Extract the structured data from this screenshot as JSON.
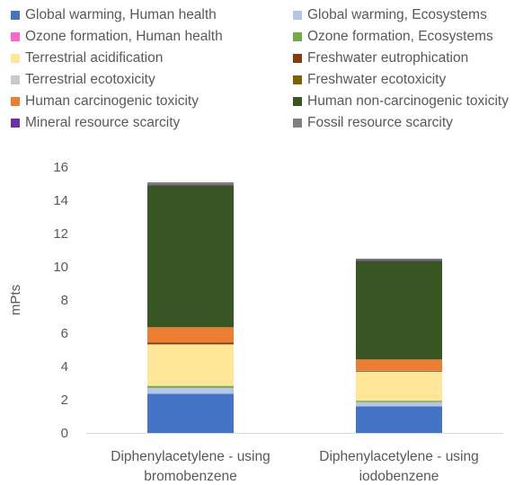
{
  "chart_data": {
    "type": "bar",
    "stacked": true,
    "categories": [
      [
        "Diphenylacetylene - using",
        "bromobenzene"
      ],
      [
        "Diphenylacetylene - using",
        "iodobenzene"
      ]
    ],
    "ylabel": "mPts",
    "ylim": [
      0,
      16
    ],
    "yticks": [
      0,
      2,
      4,
      6,
      8,
      10,
      12,
      14,
      16
    ],
    "grid": false,
    "legend_position": "top",
    "series": [
      {
        "name": "Global warming, Human health",
        "color": "#4472c4",
        "values": [
          2.35,
          1.6
        ]
      },
      {
        "name": "Global warming, Ecosystems",
        "color": "#b4c7e7",
        "values": [
          0.35,
          0.25
        ]
      },
      {
        "name": "Ozone formation, Human health",
        "color": "#ff66cc",
        "values": [
          0.01,
          0.01
        ]
      },
      {
        "name": "Ozone formation, Ecosystems",
        "color": "#70ad47",
        "values": [
          0.12,
          0.08
        ]
      },
      {
        "name": "Terrestrial acidification",
        "color": "#ffe699",
        "values": [
          2.5,
          1.75
        ]
      },
      {
        "name": "Freshwater eutrophication",
        "color": "#843c0c",
        "values": [
          0.1,
          0.05
        ]
      },
      {
        "name": "Terrestrial ecotoxicity",
        "color": "#c9c9c9",
        "values": [
          0.01,
          0.01
        ]
      },
      {
        "name": "Freshwater ecotoxicity",
        "color": "#7f6000",
        "values": [
          0.02,
          0.02
        ]
      },
      {
        "name": "Human carcinogenic toxicity",
        "color": "#ed7d31",
        "values": [
          0.9,
          0.65
        ]
      },
      {
        "name": "Human non-carcinogenic toxicity",
        "color": "#375623",
        "values": [
          8.55,
          5.95
        ]
      },
      {
        "name": "Mineral resource scarcity",
        "color": "#7030a0",
        "values": [
          0.05,
          0.04
        ]
      },
      {
        "name": "Fossil resource scarcity",
        "color": "#808080",
        "values": [
          0.12,
          0.08
        ]
      }
    ]
  }
}
